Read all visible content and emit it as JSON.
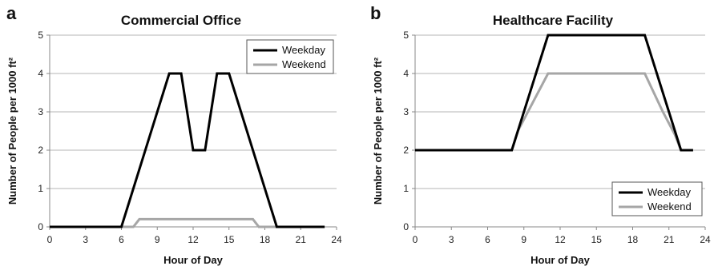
{
  "chart_data": [
    {
      "type": "line",
      "panel": "a",
      "title": "Commercial Office",
      "xlabel": "Hour of Day",
      "ylabel": "Number of People per 1000 ft²",
      "xlim": [
        0,
        24
      ],
      "ylim": [
        0,
        5
      ],
      "xticks": [
        0,
        3,
        6,
        9,
        12,
        15,
        18,
        21,
        24
      ],
      "yticks": [
        0,
        1,
        2,
        3,
        4,
        5
      ],
      "grid": "horizontal",
      "legend_position": "top-right",
      "series": [
        {
          "name": "Weekday",
          "color": "#000000",
          "x": [
            0,
            6,
            10,
            11,
            12,
            13,
            14,
            15,
            19,
            23
          ],
          "y": [
            0,
            0,
            4,
            4,
            2,
            2,
            4,
            4,
            0,
            0
          ]
        },
        {
          "name": "Weekend",
          "color": "#a6a6a6",
          "x": [
            0,
            7,
            7.5,
            17,
            17.5,
            23
          ],
          "y": [
            0,
            0,
            0.2,
            0.2,
            0,
            0
          ]
        }
      ]
    },
    {
      "type": "line",
      "panel": "b",
      "title": "Healthcare Facility",
      "xlabel": "Hour of Day",
      "ylabel": "Number of People per 1000 ft²",
      "xlim": [
        0,
        24
      ],
      "ylim": [
        0,
        5
      ],
      "xticks": [
        0,
        3,
        6,
        9,
        12,
        15,
        18,
        21,
        24
      ],
      "yticks": [
        0,
        1,
        2,
        3,
        4,
        5
      ],
      "grid": "horizontal",
      "legend_position": "bottom-right",
      "series": [
        {
          "name": "Weekday",
          "color": "#000000",
          "x": [
            0,
            8,
            11,
            19,
            22,
            23
          ],
          "y": [
            2,
            2,
            5,
            5,
            2,
            2
          ]
        },
        {
          "name": "Weekend",
          "color": "#a6a6a6",
          "x": [
            0,
            8,
            8.5,
            11,
            19,
            20.5,
            21.5,
            22,
            23
          ],
          "y": [
            2,
            2,
            2.5,
            4,
            4,
            3,
            2.4,
            2,
            2
          ]
        }
      ]
    }
  ]
}
